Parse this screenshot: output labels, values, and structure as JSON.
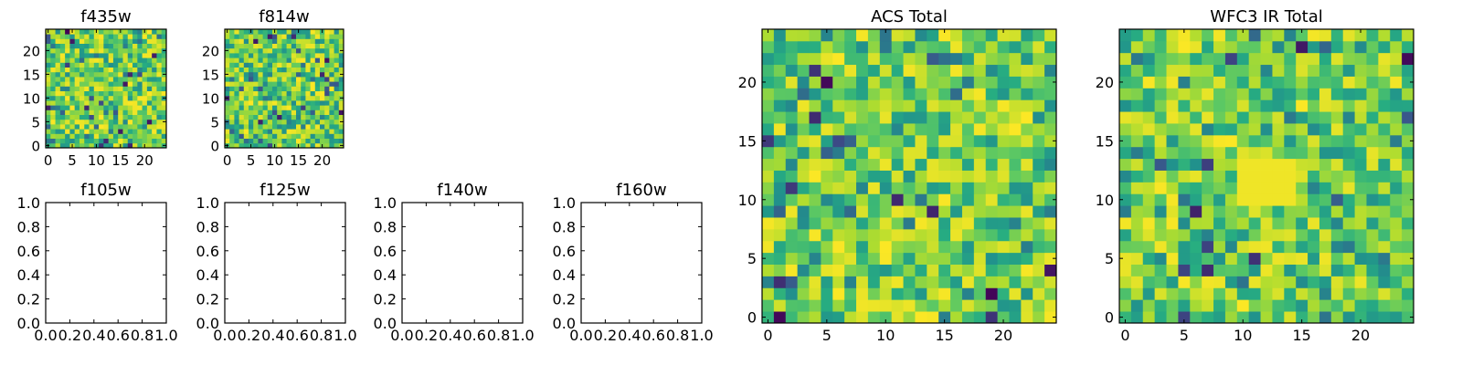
{
  "figure": {
    "background": "#ffffff",
    "colormap_stops": [
      "#440154",
      "#3b528b",
      "#21918c",
      "#27ad81",
      "#5ec962",
      "#addc30",
      "#fde725"
    ]
  },
  "chart_data": [
    {
      "id": "f435w",
      "type": "heatmap",
      "title": "f435w",
      "xlabel": "",
      "ylabel": "",
      "grid_size": 25,
      "xlim": [
        -0.5,
        24.5
      ],
      "ylim": [
        -0.5,
        24.5
      ],
      "xticks": [
        "0",
        "5",
        "10",
        "15",
        "20"
      ],
      "yticks": [
        "0",
        "5",
        "10",
        "15",
        "20"
      ],
      "seed": 11,
      "values": "random noise image"
    },
    {
      "id": "f814w",
      "type": "heatmap",
      "title": "f814w",
      "xlabel": "",
      "ylabel": "",
      "grid_size": 25,
      "xlim": [
        -0.5,
        24.5
      ],
      "ylim": [
        -0.5,
        24.5
      ],
      "xticks": [
        "0",
        "5",
        "10",
        "15",
        "20"
      ],
      "yticks": [
        "0",
        "5",
        "10",
        "15",
        "20"
      ],
      "seed": 23,
      "values": "random noise image"
    },
    {
      "id": "f105w",
      "type": "empty",
      "title": "f105w",
      "xlim": [
        0,
        1
      ],
      "ylim": [
        0,
        1
      ],
      "xticks": [
        "0.0",
        "0.2",
        "0.4",
        "0.6",
        "0.8",
        "1.0"
      ],
      "yticks": [
        "0.0",
        "0.2",
        "0.4",
        "0.6",
        "0.8",
        "1.0"
      ]
    },
    {
      "id": "f125w",
      "type": "empty",
      "title": "f125w",
      "xlim": [
        0,
        1
      ],
      "ylim": [
        0,
        1
      ],
      "xticks": [
        "0.0",
        "0.2",
        "0.4",
        "0.6",
        "0.8",
        "1.0"
      ],
      "yticks": [
        "0.0",
        "0.2",
        "0.4",
        "0.6",
        "0.8",
        "1.0"
      ]
    },
    {
      "id": "f140w",
      "type": "empty",
      "title": "f140w",
      "xlim": [
        0,
        1
      ],
      "ylim": [
        0,
        1
      ],
      "xticks": [
        "0.0",
        "0.2",
        "0.4",
        "0.6",
        "0.8",
        "1.0"
      ],
      "yticks": [
        "0.0",
        "0.2",
        "0.4",
        "0.6",
        "0.8",
        "1.0"
      ]
    },
    {
      "id": "f160w",
      "type": "empty",
      "title": "f160w",
      "xlim": [
        0,
        1
      ],
      "ylim": [
        0,
        1
      ],
      "xticks": [
        "0.0",
        "0.2",
        "0.4",
        "0.6",
        "0.8",
        "1.0"
      ],
      "yticks": [
        "0.0",
        "0.2",
        "0.4",
        "0.6",
        "0.8",
        "1.0"
      ]
    },
    {
      "id": "acs-total",
      "type": "heatmap",
      "title": "ACS Total",
      "xlabel": "",
      "ylabel": "",
      "grid_size": 25,
      "xlim": [
        -0.5,
        24.5
      ],
      "ylim": [
        -0.5,
        24.5
      ],
      "xticks": [
        "0",
        "5",
        "10",
        "15",
        "20"
      ],
      "yticks": [
        "0",
        "5",
        "10",
        "15",
        "20"
      ],
      "seed": 37,
      "values": "random noise image"
    },
    {
      "id": "wfc3-ir-total",
      "type": "heatmap",
      "title": "WFC3 IR Total",
      "xlabel": "",
      "ylabel": "",
      "grid_size": 25,
      "xlim": [
        -0.5,
        24.5
      ],
      "ylim": [
        -0.5,
        24.5
      ],
      "xticks": [
        "0",
        "5",
        "10",
        "15",
        "20"
      ],
      "yticks": [
        "0",
        "5",
        "10",
        "15",
        "20"
      ],
      "seed": 53,
      "values": "random noise image",
      "highlight": "bright yellow blob near x=11-14, y=10-13"
    }
  ]
}
